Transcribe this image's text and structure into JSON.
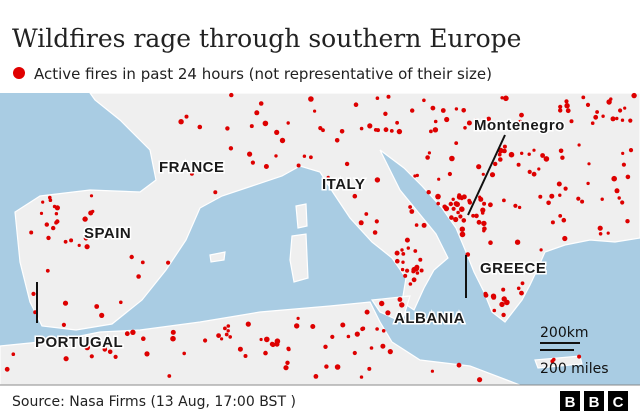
{
  "header": {
    "title": "Wildfires rage through southern Europe",
    "legend": "Active fires in past 24 hours (not representative of their size)"
  },
  "labels": {
    "france": "FRANCE",
    "spain": "SPAIN",
    "italy": "ITALY",
    "greece": "GREECE",
    "albania": "ALBANIA",
    "portugal": "PORTUGAL",
    "montenegro": "Montenegro"
  },
  "scale": {
    "km": "200km",
    "miles": "200 miles"
  },
  "footer": {
    "source": "Source: Nasa Firms (13 Aug, 17:00 BST )",
    "logo": [
      "B",
      "B",
      "C"
    ]
  }
}
